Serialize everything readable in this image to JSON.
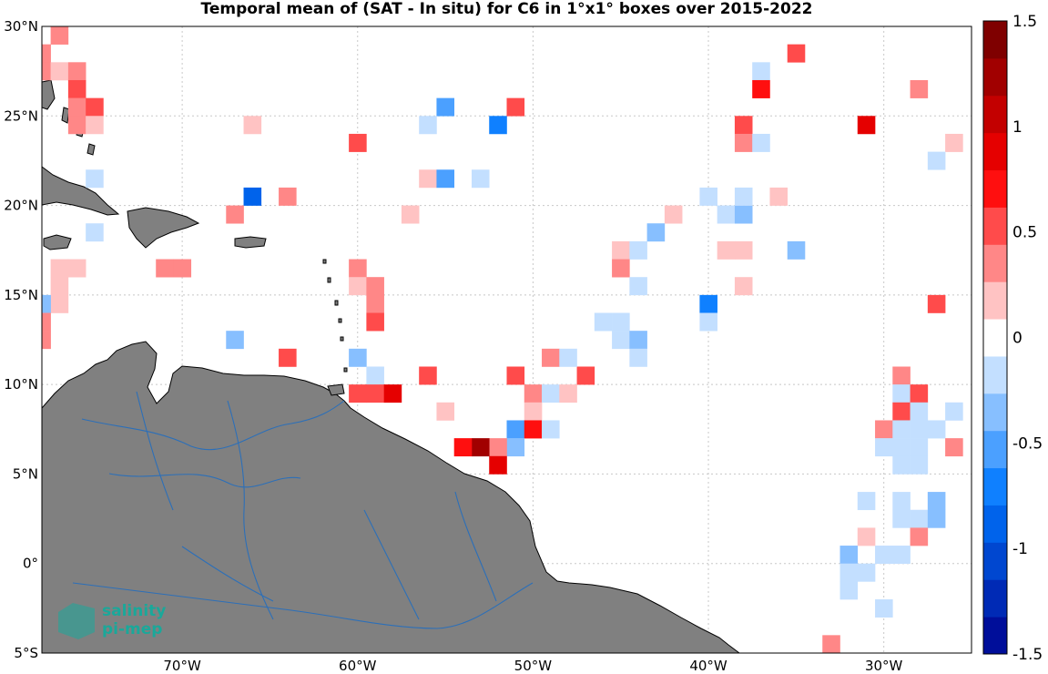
{
  "title": "Temporal mean of (SAT - In situ) for C6 in 1°x1° boxes over 2015-2022",
  "logo": {
    "line1": "salinity",
    "line2": "pi-mep"
  },
  "colors": {
    "land": "#808080",
    "rivers": "#2c6fb8",
    "grid": "#c8c8c8",
    "coast": "#000000"
  },
  "map": {
    "lon_range": [
      -78,
      -25
    ],
    "lat_range": [
      -5,
      30
    ],
    "lon_ticks": [
      {
        "value": -70,
        "label": "70°W"
      },
      {
        "value": -60,
        "label": "60°W"
      },
      {
        "value": -50,
        "label": "50°W"
      },
      {
        "value": -40,
        "label": "40°W"
      },
      {
        "value": -30,
        "label": "30°W"
      }
    ],
    "lat_ticks": [
      {
        "value": 30,
        "label": "30°N"
      },
      {
        "value": 25,
        "label": "25°N"
      },
      {
        "value": 20,
        "label": "20°N"
      },
      {
        "value": 15,
        "label": "15°N"
      },
      {
        "value": 10,
        "label": "10°N"
      },
      {
        "value": 5,
        "label": "5°N"
      },
      {
        "value": 0,
        "label": "0°"
      },
      {
        "value": -5,
        "label": "5°S"
      }
    ]
  },
  "colorbar": {
    "range": [
      -1.5,
      1.5
    ],
    "ticks": [
      {
        "value": 1.5,
        "label": "1.5"
      },
      {
        "value": 1,
        "label": "1"
      },
      {
        "value": 0.5,
        "label": "0.5"
      },
      {
        "value": 0,
        "label": "0"
      },
      {
        "value": -0.5,
        "label": "-0.5"
      },
      {
        "value": -1,
        "label": "-1"
      },
      {
        "value": -1.5,
        "label": "-1.5"
      }
    ]
  },
  "chart_data": {
    "type": "heatmap",
    "title": "Temporal mean of (SAT - In situ) for C6 in 1°x1° boxes over 2015-2022",
    "x_unit": "longitude (°E)",
    "y_unit": "latitude (°N)",
    "value_range": [
      -1.5,
      1.5
    ],
    "cells": [
      {
        "lon": -77,
        "lat": 29.5,
        "v": 0.3
      },
      {
        "lon": -78,
        "lat": 28.5,
        "v": 0.4
      },
      {
        "lon": -78,
        "lat": 27.5,
        "v": 0.3
      },
      {
        "lon": -77,
        "lat": 27.5,
        "v": 0.15
      },
      {
        "lon": -76,
        "lat": 27.5,
        "v": 0.3
      },
      {
        "lon": -76,
        "lat": 26.5,
        "v": 0.45
      },
      {
        "lon": -76,
        "lat": 25.5,
        "v": 0.3
      },
      {
        "lon": -75,
        "lat": 25.5,
        "v": 0.55
      },
      {
        "lon": -76,
        "lat": 24.5,
        "v": 0.3
      },
      {
        "lon": -75,
        "lat": 24.5,
        "v": 0.15
      },
      {
        "lon": -66,
        "lat": 24.5,
        "v": 0.15
      },
      {
        "lon": -60,
        "lat": 23.5,
        "v": 0.6
      },
      {
        "lon": -55,
        "lat": 25.5,
        "v": -0.45
      },
      {
        "lon": -56,
        "lat": 24.5,
        "v": -0.1
      },
      {
        "lon": -52,
        "lat": 24.5,
        "v": -0.65
      },
      {
        "lon": -51,
        "lat": 25.5,
        "v": 0.55
      },
      {
        "lon": -56,
        "lat": 21.5,
        "v": 0.15
      },
      {
        "lon": -55,
        "lat": 21.5,
        "v": -0.5
      },
      {
        "lon": -53,
        "lat": 21.5,
        "v": -0.2
      },
      {
        "lon": -75,
        "lat": 21.5,
        "v": -0.1
      },
      {
        "lon": -66,
        "lat": 20.5,
        "v": -0.85
      },
      {
        "lon": -64,
        "lat": 20.5,
        "v": 0.3
      },
      {
        "lon": -67,
        "lat": 19.5,
        "v": 0.4
      },
      {
        "lon": -57,
        "lat": 19.5,
        "v": 0.15
      },
      {
        "lon": -75,
        "lat": 18.5,
        "v": -0.2
      },
      {
        "lon": -77,
        "lat": 16.5,
        "v": 0.15
      },
      {
        "lon": -76,
        "lat": 16.5,
        "v": 0.15
      },
      {
        "lon": -77,
        "lat": 15.5,
        "v": 0.15
      },
      {
        "lon": -77,
        "lat": 14.5,
        "v": 0.15
      },
      {
        "lon": -78,
        "lat": 14.5,
        "v": -0.3
      },
      {
        "lon": -78,
        "lat": 13.5,
        "v": 0.3
      },
      {
        "lon": -78,
        "lat": 12.5,
        "v": 0.4
      },
      {
        "lon": -71,
        "lat": 16.5,
        "v": 0.3
      },
      {
        "lon": -70,
        "lat": 16.5,
        "v": 0.4
      },
      {
        "lon": -60,
        "lat": 16.5,
        "v": 0.4
      },
      {
        "lon": -60,
        "lat": 15.5,
        "v": 0.15
      },
      {
        "lon": -59,
        "lat": 15.5,
        "v": 0.3
      },
      {
        "lon": -59,
        "lat": 14.5,
        "v": 0.3
      },
      {
        "lon": -59,
        "lat": 13.5,
        "v": 0.5
      },
      {
        "lon": -67,
        "lat": 12.5,
        "v": -0.3
      },
      {
        "lon": -64,
        "lat": 11.5,
        "v": 0.5
      },
      {
        "lon": -60,
        "lat": 11.5,
        "v": -0.3
      },
      {
        "lon": -59,
        "lat": 10.5,
        "v": -0.1
      },
      {
        "lon": -60,
        "lat": 9.5,
        "v": 0.45
      },
      {
        "lon": -59,
        "lat": 9.5,
        "v": 0.6
      },
      {
        "lon": -58,
        "lat": 9.5,
        "v": 0.9
      },
      {
        "lon": -56,
        "lat": 10.5,
        "v": 0.5
      },
      {
        "lon": -55,
        "lat": 8.5,
        "v": 0.15
      },
      {
        "lon": -51,
        "lat": 10.5,
        "v": 0.5
      },
      {
        "lon": -50,
        "lat": 9.5,
        "v": 0.3
      },
      {
        "lon": -49,
        "lat": 9.5,
        "v": -0.1
      },
      {
        "lon": -48,
        "lat": 9.5,
        "v": 0.15
      },
      {
        "lon": -47,
        "lat": 10.5,
        "v": 0.5
      },
      {
        "lon": -49,
        "lat": 11.5,
        "v": 0.3
      },
      {
        "lon": -48,
        "lat": 11.5,
        "v": -0.2
      },
      {
        "lon": -50,
        "lat": 8.5,
        "v": 0.15
      },
      {
        "lon": -51,
        "lat": 7.5,
        "v": -0.45
      },
      {
        "lon": -50,
        "lat": 7.5,
        "v": 0.75
      },
      {
        "lon": -49,
        "lat": 7.5,
        "v": -0.1
      },
      {
        "lon": -51,
        "lat": 6.5,
        "v": -0.3
      },
      {
        "lon": -52,
        "lat": 6.5,
        "v": 0.3
      },
      {
        "lon": -53,
        "lat": 6.5,
        "v": 1.3
      },
      {
        "lon": -54,
        "lat": 6.5,
        "v": 0.65
      },
      {
        "lon": -52,
        "lat": 5.5,
        "v": 0.85
      },
      {
        "lon": -45,
        "lat": 17.5,
        "v": 0.15
      },
      {
        "lon": -44,
        "lat": 17.5,
        "v": -0.1
      },
      {
        "lon": -45,
        "lat": 16.5,
        "v": 0.3
      },
      {
        "lon": -44,
        "lat": 15.5,
        "v": -0.1
      },
      {
        "lon": -43,
        "lat": 18.5,
        "v": -0.3
      },
      {
        "lon": -42,
        "lat": 19.5,
        "v": 0.15
      },
      {
        "lon": -46,
        "lat": 13.5,
        "v": -0.2
      },
      {
        "lon": -45,
        "lat": 13.5,
        "v": -0.2
      },
      {
        "lon": -45,
        "lat": 12.5,
        "v": -0.2
      },
      {
        "lon": -44,
        "lat": 12.5,
        "v": -0.35
      },
      {
        "lon": -44,
        "lat": 11.5,
        "v": -0.1
      },
      {
        "lon": -40,
        "lat": 14.5,
        "v": -0.7
      },
      {
        "lon": -40,
        "lat": 13.5,
        "v": -0.2
      },
      {
        "lon": -40,
        "lat": 20.5,
        "v": -0.2
      },
      {
        "lon": -39,
        "lat": 19.5,
        "v": -0.2
      },
      {
        "lon": -38,
        "lat": 19.5,
        "v": -0.35
      },
      {
        "lon": -38,
        "lat": 20.5,
        "v": -0.1
      },
      {
        "lon": -36,
        "lat": 20.5,
        "v": 0.15
      },
      {
        "lon": -39,
        "lat": 17.5,
        "v": 0.15
      },
      {
        "lon": -38,
        "lat": 17.5,
        "v": 0.15
      },
      {
        "lon": -38,
        "lat": 15.5,
        "v": 0.15
      },
      {
        "lon": -35,
        "lat": 17.5,
        "v": -0.3
      },
      {
        "lon": -38,
        "lat": 24.5,
        "v": 0.5
      },
      {
        "lon": -38,
        "lat": 23.5,
        "v": 0.3
      },
      {
        "lon": -37,
        "lat": 23.5,
        "v": -0.1
      },
      {
        "lon": -37,
        "lat": 27.5,
        "v": -0.2
      },
      {
        "lon": -37,
        "lat": 26.5,
        "v": 0.65
      },
      {
        "lon": -35,
        "lat": 28.5,
        "v": 0.55
      },
      {
        "lon": -31,
        "lat": 24.5,
        "v": 0.8
      },
      {
        "lon": -28,
        "lat": 26.5,
        "v": 0.3
      },
      {
        "lon": -26,
        "lat": 23.5,
        "v": 0.15
      },
      {
        "lon": -27,
        "lat": 22.5,
        "v": -0.2
      },
      {
        "lon": -27,
        "lat": 14.5,
        "v": 0.45
      },
      {
        "lon": -29,
        "lat": 10.5,
        "v": 0.3
      },
      {
        "lon": -29,
        "lat": 9.5,
        "v": -0.2
      },
      {
        "lon": -28,
        "lat": 9.5,
        "v": 0.5
      },
      {
        "lon": -29,
        "lat": 8.5,
        "v": 0.45
      },
      {
        "lon": -28,
        "lat": 8.5,
        "v": -0.1
      },
      {
        "lon": -26,
        "lat": 8.5,
        "v": -0.1
      },
      {
        "lon": -30,
        "lat": 7.5,
        "v": 0.3
      },
      {
        "lon": -29,
        "lat": 7.5,
        "v": -0.1
      },
      {
        "lon": -28,
        "lat": 7.5,
        "v": -0.2
      },
      {
        "lon": -27,
        "lat": 7.5,
        "v": -0.1
      },
      {
        "lon": -30,
        "lat": 6.5,
        "v": -0.1
      },
      {
        "lon": -29,
        "lat": 6.5,
        "v": -0.2
      },
      {
        "lon": -28,
        "lat": 6.5,
        "v": -0.2
      },
      {
        "lon": -26,
        "lat": 6.5,
        "v": 0.3
      },
      {
        "lon": -29,
        "lat": 5.5,
        "v": -0.1
      },
      {
        "lon": -28,
        "lat": 5.5,
        "v": -0.2
      },
      {
        "lon": -31,
        "lat": 3.5,
        "v": -0.1
      },
      {
        "lon": -29,
        "lat": 3.5,
        "v": -0.2
      },
      {
        "lon": -27,
        "lat": 3.5,
        "v": -0.35
      },
      {
        "lon": -29,
        "lat": 2.5,
        "v": -0.1
      },
      {
        "lon": -28,
        "lat": 2.5,
        "v": -0.1
      },
      {
        "lon": -27,
        "lat": 2.5,
        "v": -0.35
      },
      {
        "lon": -31,
        "lat": 1.5,
        "v": 0.15
      },
      {
        "lon": -28,
        "lat": 1.5,
        "v": 0.3
      },
      {
        "lon": -32,
        "lat": 0.5,
        "v": -0.35
      },
      {
        "lon": -30,
        "lat": 0.5,
        "v": -0.1
      },
      {
        "lon": -29,
        "lat": 0.5,
        "v": -0.2
      },
      {
        "lon": -32,
        "lat": -0.5,
        "v": -0.1
      },
      {
        "lon": -31,
        "lat": -0.5,
        "v": -0.1
      },
      {
        "lon": -32,
        "lat": -1.5,
        "v": -0.2
      },
      {
        "lon": -30,
        "lat": -2.5,
        "v": -0.1
      },
      {
        "lon": -33,
        "lat": -4.5,
        "v": 0.4
      }
    ]
  }
}
